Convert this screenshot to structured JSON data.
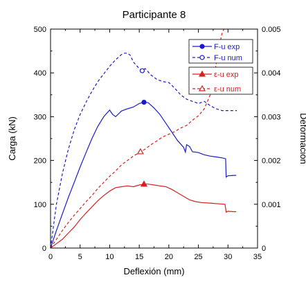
{
  "chart_data": {
    "type": "line",
    "title": "Participante 8",
    "xlabel": "Deflexión (mm)",
    "ylabel": "Carga (kN)",
    "y2label": "Deformación",
    "xlim": [
      0,
      35
    ],
    "ylim": [
      0,
      500
    ],
    "y2lim": [
      0,
      0.005
    ],
    "xticks": [
      0,
      5,
      10,
      15,
      20,
      25,
      30,
      35
    ],
    "yticks": [
      0,
      100,
      200,
      300,
      400,
      500
    ],
    "y2ticks": [
      0,
      0.001,
      0.002,
      0.003,
      0.004,
      0.005
    ],
    "xtick_labels": [
      "0",
      "5",
      "10",
      "15",
      "20",
      "25",
      "30",
      "35"
    ],
    "ytick_labels": [
      "0",
      "100",
      "200",
      "300",
      "400",
      "500"
    ],
    "y2tick_labels": [
      "0",
      "0.001",
      "0.002",
      "0.003",
      "0.004",
      "0.005"
    ],
    "grid": false,
    "legends": [
      {
        "position": "upper-right",
        "entries": [
          {
            "label": "F-u exp",
            "series": 0
          },
          {
            "label": "F-u num",
            "series": 1
          }
        ]
      },
      {
        "position": "right",
        "entries": [
          {
            "label": "ε-u exp",
            "series": 2
          },
          {
            "label": "ε-u num",
            "series": 3
          }
        ]
      }
    ],
    "series": [
      {
        "name": "F-u exp",
        "axis": "left",
        "color": "#1a1acc",
        "dash": "solid",
        "marker": "filled-circle",
        "marker_point": [
          15.8,
          333
        ],
        "x": [
          0,
          1,
          2,
          3,
          4,
          5,
          6,
          7,
          8,
          9,
          10,
          10.5,
          11,
          12,
          13,
          14,
          15,
          15.8,
          16.5,
          17.5,
          18.5,
          19.5,
          20.5,
          21.5,
          22.5,
          22.8,
          23,
          23.5,
          24,
          25,
          26,
          27,
          28,
          29,
          29.6,
          29.7,
          30,
          31,
          31.4
        ],
        "y": [
          0,
          40,
          78,
          115,
          150,
          185,
          218,
          250,
          278,
          300,
          315,
          305,
          300,
          313,
          318,
          322,
          330,
          333,
          332,
          320,
          305,
          285,
          265,
          245,
          230,
          219,
          236,
          232,
          220,
          218,
          213,
          210,
          208,
          206,
          204,
          162,
          165,
          166,
          166
        ]
      },
      {
        "name": "F-u num",
        "axis": "left",
        "color": "#1a1acc",
        "dash": "dashed",
        "marker": "open-circle",
        "marker_point": [
          15.5,
          405
        ],
        "x": [
          0,
          1,
          2,
          3,
          4,
          5,
          6,
          7,
          8,
          9,
          10,
          11,
          12,
          12.5,
          13,
          13.5,
          14,
          15,
          15.5,
          16,
          17,
          18,
          19,
          20,
          21,
          22,
          23,
          24,
          25,
          26,
          27,
          28,
          29,
          30,
          31,
          31.5
        ],
        "y": [
          0,
          100,
          170,
          225,
          270,
          305,
          333,
          358,
          380,
          398,
          415,
          430,
          442,
          445,
          445,
          440,
          425,
          410,
          405,
          410,
          395,
          385,
          380,
          378,
          365,
          350,
          340,
          335,
          330,
          335,
          325,
          318,
          314,
          314,
          314,
          314
        ]
      },
      {
        "name": "ε-u exp",
        "axis": "right",
        "color": "#d42020",
        "dash": "solid",
        "marker": "filled-triangle",
        "marker_point": [
          15.8,
          0.00146
        ],
        "x": [
          0,
          1,
          2,
          3,
          4,
          5,
          6,
          7,
          8,
          9,
          10,
          11,
          12,
          13,
          14,
          15,
          15.8,
          16.5,
          17.5,
          18.5,
          19.5,
          20.5,
          21.5,
          22.5,
          23.5,
          24.5,
          25.5,
          26.5,
          27.5,
          28.5,
          29.5,
          29.7,
          30,
          31,
          31.4
        ],
        "y": [
          0,
          0.0001,
          0.0002,
          0.00034,
          0.00048,
          0.00065,
          0.0008,
          0.00094,
          0.00108,
          0.0012,
          0.0013,
          0.00138,
          0.0014,
          0.00142,
          0.0014,
          0.00144,
          0.00146,
          0.00146,
          0.00144,
          0.00142,
          0.0014,
          0.00134,
          0.00126,
          0.00118,
          0.0011,
          0.00106,
          0.00104,
          0.00103,
          0.00102,
          0.00101,
          0.001,
          0.00082,
          0.00084,
          0.00083,
          0.00083
        ]
      },
      {
        "name": "ε-u num",
        "axis": "right",
        "color": "#d42020",
        "dash": "dashed",
        "marker": "open-triangle",
        "marker_point": [
          15.2,
          0.0022
        ],
        "x": [
          0,
          1,
          2,
          3,
          4,
          5,
          6,
          7,
          8,
          9,
          10,
          11,
          12,
          13,
          14,
          15,
          15.2,
          16,
          17,
          18,
          19,
          20,
          21,
          22,
          23,
          24,
          25,
          25.5,
          26,
          27,
          27.5,
          28,
          28.5,
          29,
          29.5
        ],
        "y": [
          0,
          0.0002,
          0.0004,
          0.00058,
          0.00075,
          0.0009,
          0.00106,
          0.0012,
          0.00136,
          0.0015,
          0.00164,
          0.00176,
          0.0019,
          0.002,
          0.0021,
          0.00218,
          0.0022,
          0.00226,
          0.00236,
          0.00245,
          0.00254,
          0.0026,
          0.00266,
          0.00274,
          0.0028,
          0.00292,
          0.00302,
          0.0031,
          0.00318,
          0.0035,
          0.0038,
          0.0042,
          0.0046,
          0.0049,
          0.00505
        ]
      }
    ]
  }
}
